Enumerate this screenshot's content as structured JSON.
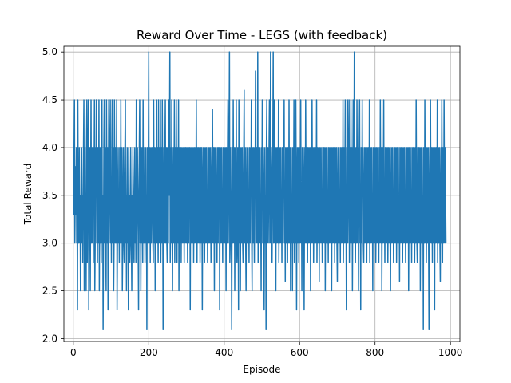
{
  "chart_data": {
    "type": "line",
    "title": "Reward Over Time - LEGS (with feedback)",
    "xlabel": "Episode",
    "ylabel": "Total Reward",
    "xlim": [
      -25,
      1025
    ],
    "ylim": [
      1.97,
      5.06
    ],
    "x_ticks": [
      0,
      200,
      400,
      600,
      800,
      1000
    ],
    "x_tick_labels": [
      "0",
      "200",
      "400",
      "600",
      "800",
      "1000"
    ],
    "y_ticks": [
      2.0,
      2.5,
      3.0,
      3.5,
      4.0,
      4.5,
      5.0
    ],
    "y_tick_labels": [
      "2.0",
      "2.5",
      "3.0",
      "3.5",
      "4.0",
      "4.5",
      "5.0"
    ],
    "grid": true,
    "line_color": "#1f77b4",
    "series": [
      {
        "x_start": 0,
        "x_step": 1,
        "values": [
          3.5,
          3.3,
          4.0,
          4.5,
          3.0,
          3.5,
          3.8,
          3.3,
          4.0,
          3.0,
          3.3,
          2.3,
          4.5,
          3.5,
          3.0,
          3.3,
          4.0,
          3.0,
          3.5,
          2.5,
          3.0,
          3.8,
          4.0,
          3.0,
          3.5,
          2.8,
          3.5,
          4.0,
          4.5,
          2.5,
          3.0,
          4.0,
          3.0,
          3.5,
          2.5,
          4.0,
          4.5,
          2.8,
          3.5,
          4.0,
          4.5,
          2.3,
          3.5,
          3.0,
          4.0,
          2.5,
          3.5,
          4.5,
          3.0,
          3.8,
          4.0,
          3.0,
          3.5,
          2.8,
          4.0,
          3.5,
          4.5,
          2.5,
          3.0,
          4.0,
          3.5,
          4.5,
          3.0,
          3.5,
          2.8,
          4.0,
          3.5,
          3.0,
          4.5,
          2.5,
          3.5,
          4.0,
          3.0,
          3.5,
          2.8,
          4.0,
          4.5,
          3.0,
          3.5,
          2.1,
          3.0,
          4.0,
          4.5,
          3.0,
          3.5,
          4.0,
          3.0,
          2.5,
          4.5,
          3.5,
          3.0,
          4.0,
          2.3,
          3.5,
          4.5,
          3.0,
          3.5,
          4.0,
          4.5,
          3.0,
          3.5,
          2.8,
          4.0,
          4.5,
          3.0,
          3.5,
          4.0,
          2.5,
          3.0,
          4.5,
          3.5,
          3.0,
          4.0,
          3.0,
          3.5,
          4.5,
          2.3,
          3.0,
          3.5,
          4.0,
          3.0,
          3.5,
          2.8,
          4.0,
          3.5,
          3.0,
          4.5,
          3.0,
          3.5,
          4.0,
          2.5,
          3.0,
          3.5,
          4.0,
          3.0,
          2.8,
          3.5,
          4.0,
          4.5,
          3.0,
          3.5,
          2.5,
          3.5,
          4.0,
          3.0,
          3.5,
          2.3,
          4.0,
          3.0,
          3.5,
          2.8,
          3.0,
          4.0,
          3.5,
          3.0,
          2.5,
          3.5,
          3.0,
          4.0,
          3.5,
          3.0,
          2.8,
          3.5,
          4.0,
          3.0,
          3.5,
          2.8,
          4.5,
          3.0,
          3.5,
          4.0,
          3.5,
          3.0,
          2.3,
          3.5,
          4.0,
          4.5,
          3.0,
          4.0,
          2.5,
          3.5,
          3.0,
          4.0,
          3.5,
          2.8,
          4.5,
          3.0,
          3.5,
          3.0,
          4.0,
          2.8,
          3.5,
          4.0,
          3.0,
          3.5,
          2.1,
          4.0,
          3.5,
          3.0,
          4.0,
          5.0,
          3.0,
          3.5,
          4.0,
          2.8,
          3.5,
          4.0,
          3.0,
          3.5,
          4.0,
          3.5,
          3.0,
          2.8,
          4.5,
          3.5,
          3.0,
          4.0,
          2.5,
          3.5,
          4.0,
          3.5,
          4.5,
          3.0,
          4.0,
          3.5,
          2.8,
          4.5,
          3.0,
          4.0,
          3.5,
          3.0,
          4.5,
          2.8,
          3.5,
          4.0,
          3.0,
          4.5,
          3.5,
          2.1,
          3.0,
          4.0,
          3.5,
          3.0,
          4.0,
          4.5,
          3.0,
          3.5,
          4.0,
          3.0,
          2.8,
          4.0,
          3.5,
          3.0,
          4.5,
          3.5,
          4.0,
          5.0,
          2.8,
          4.0,
          3.5,
          3.0,
          4.5,
          3.0,
          2.5,
          3.5,
          4.0,
          3.0,
          3.5,
          4.5,
          2.8,
          3.5,
          4.0,
          3.0,
          4.5,
          3.5,
          2.8,
          4.0,
          3.5,
          3.0,
          4.5,
          2.5,
          3.5,
          4.0,
          3.0,
          3.5,
          4.0,
          2.8,
          3.5,
          4.0,
          3.0,
          3.5,
          4.0,
          3.0,
          3.5,
          2.8,
          4.0,
          3.5,
          3.0,
          4.0,
          3.5,
          3.0,
          4.0,
          3.5,
          2.8,
          4.0,
          3.5,
          3.0,
          4.0,
          3.5,
          4.0,
          2.3,
          3.5,
          4.0,
          3.0,
          3.5,
          4.0,
          3.0,
          3.5,
          4.0,
          2.8,
          3.5,
          4.0,
          3.0,
          3.5,
          4.0,
          3.0,
          4.5,
          3.5,
          2.8,
          4.0,
          3.5,
          3.0,
          4.0,
          3.5,
          3.0,
          4.0,
          2.8,
          3.5,
          4.0,
          3.0,
          4.0,
          3.5,
          2.3,
          3.5,
          4.0,
          3.0,
          3.5,
          4.0,
          2.8,
          3.5,
          4.0,
          3.0,
          3.5,
          4.0,
          3.0,
          3.5,
          2.8,
          4.0,
          3.5,
          3.0,
          4.0,
          3.5,
          3.0,
          4.0,
          3.5,
          2.8,
          3.5,
          4.0,
          3.0,
          4.4,
          3.5,
          3.0,
          4.0,
          3.5,
          2.5,
          4.0,
          3.5,
          3.0,
          4.0,
          3.5,
          3.0,
          2.8,
          4.0,
          3.5,
          3.0,
          4.0,
          3.5,
          4.0,
          2.3,
          3.5,
          4.0,
          3.0,
          3.5,
          4.0,
          3.0,
          3.5,
          2.8,
          4.0,
          3.5,
          3.0,
          4.0,
          3.5,
          3.0,
          4.0,
          3.5,
          2.5,
          4.0,
          3.5,
          3.0,
          4.0,
          4.5,
          3.0,
          3.5,
          4.0,
          5.0,
          2.8,
          3.0,
          4.0,
          3.5,
          3.0,
          2.1,
          3.5,
          4.0,
          3.0,
          4.5,
          3.5,
          3.0,
          4.0,
          2.5,
          3.5,
          4.0,
          3.0,
          4.5,
          3.5,
          2.8,
          3.0,
          4.0,
          3.5,
          2.3,
          4.5,
          3.5,
          3.0,
          4.0,
          2.5,
          3.5,
          4.0,
          3.0,
          3.5,
          4.0,
          3.0,
          2.8,
          3.5,
          4.0,
          4.6,
          3.0,
          3.5,
          4.0,
          3.0,
          2.5,
          3.5,
          4.0,
          3.0,
          3.5,
          4.0,
          3.0,
          3.5,
          2.8,
          4.0,
          3.5,
          3.0,
          4.0,
          3.5,
          4.5,
          3.0,
          2.5,
          4.0,
          3.5,
          3.0,
          4.0,
          3.5,
          2.8,
          4.0,
          3.5,
          4.8,
          3.0,
          3.5,
          4.0,
          3.0,
          3.5,
          5.0,
          2.8,
          3.5,
          4.0,
          3.0,
          3.5,
          4.0,
          3.0,
          3.5,
          2.5,
          4.0,
          3.5,
          4.5,
          3.0,
          3.5,
          4.0,
          3.0,
          2.3,
          3.5,
          4.0,
          3.0,
          3.5,
          2.1,
          4.0,
          4.5,
          3.0,
          3.5,
          4.0,
          3.0,
          3.5,
          4.0,
          4.5,
          3.0,
          3.5,
          5.0,
          3.0,
          4.0,
          3.5,
          2.8,
          3.5,
          4.0,
          5.0,
          3.0,
          3.5,
          4.5,
          3.0,
          4.0,
          3.5,
          2.5,
          4.0,
          3.5,
          3.0,
          4.0,
          3.5,
          3.0,
          4.5,
          2.8,
          3.5,
          4.0,
          3.0,
          3.5,
          4.0,
          3.0,
          3.5,
          2.8,
          4.0,
          3.5,
          3.0,
          4.0,
          3.5,
          4.5,
          3.0,
          3.5,
          2.6,
          4.0,
          3.5,
          3.0,
          4.0,
          3.5,
          2.8,
          4.0,
          3.5,
          3.0,
          4.5,
          3.0,
          3.5,
          4.0,
          2.5,
          3.5,
          4.0,
          3.0,
          3.5,
          2.5,
          4.0,
          3.0,
          3.5,
          4.5,
          2.8,
          3.5,
          4.0,
          3.0,
          4.5,
          3.5,
          2.3,
          3.5,
          4.0,
          3.0,
          3.5,
          4.0,
          2.8,
          3.5,
          4.0,
          3.0,
          3.5,
          4.5,
          3.0,
          3.5,
          2.5,
          4.0,
          3.5,
          3.0,
          4.0,
          3.5,
          2.3,
          3.5,
          4.0,
          3.0,
          4.5,
          3.5,
          3.0,
          4.0,
          3.5,
          2.8,
          4.0,
          3.5,
          3.0,
          4.0,
          3.5,
          3.0,
          4.0,
          2.5,
          3.5,
          4.0,
          3.0,
          4.5,
          3.5,
          3.0,
          4.0,
          2.8,
          3.5,
          4.0,
          3.0,
          3.5,
          4.0,
          3.0,
          3.5,
          4.5,
          2.8,
          3.5,
          4.0,
          3.0,
          3.5,
          4.0,
          2.6,
          3.5,
          4.0,
          3.0,
          3.5,
          4.0,
          3.0,
          3.5,
          2.8,
          4.0,
          3.5,
          3.0,
          4.0,
          3.5,
          3.0,
          4.0,
          2.5,
          3.5,
          4.0,
          3.0,
          3.5,
          4.0,
          3.0,
          3.5,
          2.8,
          4.0,
          3.5,
          3.0,
          4.0,
          3.5,
          3.0,
          4.0,
          3.5,
          2.5,
          4.0,
          3.5,
          3.0,
          4.0,
          3.5,
          3.0,
          4.0,
          2.8,
          3.5,
          4.0,
          3.0,
          3.5,
          4.0,
          3.0,
          2.6,
          3.5,
          4.0,
          3.0,
          3.5,
          4.0,
          3.0,
          3.5,
          2.8,
          4.0,
          3.5,
          3.0,
          4.0,
          3.5,
          3.0,
          4.5,
          2.8,
          3.5,
          4.0,
          3.0,
          3.5,
          4.5,
          3.0,
          3.5,
          2.3,
          4.0,
          3.5,
          4.5,
          3.0,
          3.5,
          4.0,
          4.5,
          2.8,
          3.5,
          4.0,
          3.0,
          4.5,
          3.5,
          3.0,
          4.0,
          2.5,
          3.5,
          4.5,
          3.0,
          3.5,
          5.0,
          3.0,
          4.0,
          2.8,
          3.5,
          4.0,
          3.0,
          4.5,
          3.5,
          3.0,
          4.0,
          2.5,
          3.5,
          4.0,
          4.5,
          3.0,
          3.5,
          2.3,
          4.0,
          3.5,
          3.0,
          4.5,
          3.5,
          4.0,
          3.0,
          2.8,
          3.5,
          4.0,
          3.0,
          3.5,
          4.0,
          3.0,
          3.5,
          2.8,
          4.0,
          3.5,
          3.0,
          4.0,
          3.5,
          3.0,
          4.5,
          2.8,
          3.5,
          4.0,
          3.0,
          3.5,
          4.0,
          3.0,
          3.5,
          2.5,
          4.0,
          3.5,
          3.0,
          4.0,
          3.5,
          3.0,
          4.0,
          2.8,
          3.5,
          4.0,
          3.0,
          3.5,
          4.0,
          3.0,
          3.5,
          2.8,
          4.0,
          3.5,
          3.0,
          4.5,
          3.5,
          3.0,
          4.0,
          2.5,
          3.5,
          4.0,
          3.0,
          3.5,
          4.5,
          3.0,
          3.5,
          2.8,
          4.0,
          3.5,
          3.0,
          4.0,
          3.5,
          3.0,
          4.0,
          2.8,
          3.5,
          4.0,
          3.0,
          3.5,
          4.0,
          3.0,
          2.5,
          3.5,
          4.0,
          3.0,
          3.5,
          4.0,
          3.0,
          3.5,
          2.8,
          4.0,
          3.5,
          3.0,
          4.0,
          3.5,
          3.0,
          4.0,
          2.8,
          3.5,
          4.0,
          3.0,
          3.5,
          4.0,
          3.0,
          3.5,
          2.6,
          4.0,
          3.5,
          3.0,
          4.0,
          3.5,
          3.0,
          4.0,
          2.8,
          3.5,
          4.0,
          3.0,
          3.5,
          4.0,
          3.0,
          3.5,
          2.8,
          4.0,
          3.5,
          3.0,
          4.0,
          3.5,
          3.0,
          4.0,
          2.5,
          3.5,
          4.0,
          3.0,
          3.5,
          4.0,
          3.0,
          3.5,
          2.8,
          4.0,
          3.5,
          3.0,
          4.0,
          3.5,
          3.0,
          4.0,
          2.8,
          3.5,
          4.0,
          3.0,
          4.5,
          3.5,
          3.0,
          2.8,
          4.0,
          3.5,
          3.0,
          4.0,
          3.5,
          3.0,
          4.0,
          2.5,
          3.5,
          4.0,
          3.0,
          3.5,
          4.0,
          3.0,
          3.5,
          2.1,
          4.0,
          3.5,
          3.0,
          4.5,
          3.5,
          3.0,
          4.0,
          2.8,
          3.5,
          4.0,
          3.0,
          3.5,
          4.0,
          3.0,
          2.1,
          3.5,
          4.0,
          3.0,
          4.5,
          3.5,
          3.0,
          4.0,
          3.5,
          2.8,
          4.0,
          3.5,
          3.0,
          4.0,
          3.5,
          2.3,
          4.0,
          3.5,
          3.0,
          4.0,
          3.5,
          3.0,
          4.5,
          2.8,
          3.5,
          4.0,
          3.0,
          3.5,
          4.0,
          3.0,
          2.6,
          3.5,
          4.0,
          3.0,
          4.5,
          3.5,
          2.8,
          4.0,
          3.5,
          3.0,
          4.5,
          3.5,
          3.0,
          4.0,
          3.5,
          3.0
        ]
      }
    ]
  }
}
